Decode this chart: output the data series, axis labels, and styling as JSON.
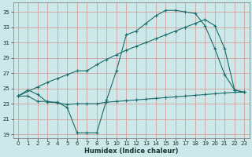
{
  "xlabel": "Humidex (Indice chaleur)",
  "bg_color": "#cce8e8",
  "grid_color": "#d4a0a0",
  "line_color": "#1a6b6b",
  "xlim": [
    -0.5,
    23.5
  ],
  "ylim": [
    18.5,
    36.2
  ],
  "xticks": [
    0,
    1,
    2,
    3,
    4,
    5,
    6,
    7,
    8,
    9,
    10,
    11,
    12,
    13,
    14,
    15,
    16,
    17,
    18,
    19,
    20,
    21,
    22,
    23
  ],
  "yticks": [
    19,
    21,
    23,
    25,
    27,
    29,
    31,
    33,
    35
  ],
  "line1_x": [
    0,
    1,
    2,
    3,
    4,
    5,
    6,
    7,
    8,
    9,
    10,
    11,
    12,
    13,
    14,
    15,
    16,
    17,
    18,
    19,
    20,
    21,
    22,
    23
  ],
  "line1_y": [
    24.0,
    24.8,
    24.2,
    23.2,
    23.2,
    22.5,
    19.2,
    19.2,
    19.2,
    23.5,
    27.3,
    32.0,
    32.5,
    33.5,
    34.5,
    35.2,
    35.2,
    35.0,
    34.8,
    33.2,
    30.2,
    26.8,
    24.8,
    24.5
  ],
  "line2_x": [
    0,
    2,
    3,
    4,
    5,
    6,
    7,
    8,
    9,
    10,
    11,
    12,
    13,
    14,
    15,
    16,
    17,
    18,
    19,
    20,
    21,
    22,
    23
  ],
  "line2_y": [
    24.0,
    25.2,
    25.8,
    26.3,
    26.8,
    27.3,
    27.3,
    28.1,
    28.8,
    29.4,
    30.0,
    30.5,
    31.0,
    31.5,
    32.0,
    32.5,
    33.0,
    33.5,
    34.0,
    33.2,
    30.2,
    24.8,
    24.5
  ],
  "line3_x": [
    0,
    1,
    2,
    3,
    4,
    5,
    6,
    7,
    8,
    9,
    10,
    11,
    12,
    13,
    14,
    15,
    16,
    17,
    18,
    19,
    20,
    21,
    22,
    23
  ],
  "line3_y": [
    24.0,
    24.0,
    23.3,
    23.3,
    23.1,
    22.9,
    23.0,
    23.0,
    23.0,
    23.2,
    23.3,
    23.4,
    23.5,
    23.6,
    23.7,
    23.8,
    23.9,
    24.0,
    24.1,
    24.2,
    24.3,
    24.4,
    24.5,
    24.5
  ]
}
